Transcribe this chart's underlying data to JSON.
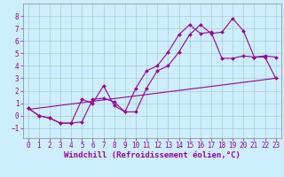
{
  "xlabel": "Windchill (Refroidissement éolien,°C)",
  "background_color": "#cceeff",
  "grid_color": "#aacccc",
  "line_color": "#990099",
  "xlim": [
    -0.5,
    23.5
  ],
  "ylim": [
    -1.8,
    9.0
  ],
  "xticks": [
    0,
    1,
    2,
    3,
    4,
    5,
    6,
    7,
    8,
    9,
    10,
    11,
    12,
    13,
    14,
    15,
    16,
    17,
    18,
    19,
    20,
    21,
    22,
    23
  ],
  "yticks": [
    -1,
    0,
    1,
    2,
    3,
    4,
    5,
    6,
    7,
    8
  ],
  "curve1_x": [
    0,
    1,
    2,
    3,
    4,
    5,
    6,
    7,
    8,
    9,
    10,
    11,
    12,
    13,
    14,
    15,
    16,
    17,
    18,
    19,
    20,
    21,
    22,
    23
  ],
  "curve1_y": [
    0.6,
    0.0,
    -0.2,
    -0.6,
    -0.6,
    -0.5,
    1.3,
    1.4,
    1.1,
    0.3,
    0.3,
    2.2,
    3.6,
    4.0,
    5.1,
    6.5,
    7.3,
    6.6,
    6.7,
    7.8,
    6.8,
    4.7,
    4.8,
    4.7
  ],
  "curve2_x": [
    0,
    1,
    2,
    3,
    4,
    5,
    6,
    7,
    8,
    9,
    10,
    11,
    12,
    13,
    14,
    15,
    16,
    17,
    18,
    19,
    20,
    21,
    22,
    23
  ],
  "curve2_y": [
    0.6,
    0.0,
    -0.2,
    -0.6,
    -0.6,
    1.3,
    1.0,
    2.4,
    0.8,
    0.3,
    2.2,
    3.6,
    4.0,
    5.1,
    6.5,
    7.3,
    6.6,
    6.7,
    4.6,
    4.6,
    4.8,
    4.7,
    4.7,
    3.0
  ],
  "curve3_x": [
    0,
    23
  ],
  "curve3_y": [
    0.5,
    3.0
  ],
  "tick_fontsize": 5.5,
  "xlabel_fontsize": 6.5
}
